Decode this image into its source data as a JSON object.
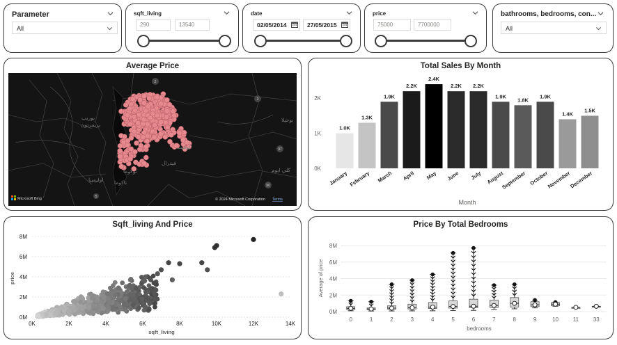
{
  "slicers": {
    "parameter": {
      "title": "Parameter",
      "value": "All"
    },
    "sqft_living": {
      "title": "sqft_living",
      "min": "290",
      "max": "13540"
    },
    "date": {
      "title": "date",
      "start": "02/05/2014",
      "end": "27/05/2015"
    },
    "price": {
      "title": "price",
      "min": "75000",
      "max": "7700000"
    },
    "rooms": {
      "title": "bathrooms, bedrooms, con...",
      "value": "All"
    }
  },
  "map": {
    "title": "Average Price",
    "attribution_left": "Microsoft Bing",
    "attribution_right": "© 2024 Microsoft Corporation",
    "terms": "Terms",
    "labels": [
      "بوريب",
      "بريمرتون",
      "توكوما",
      "كوفنت",
      "فيدرال",
      "كلي ايوم",
      "اوليمبيا",
      "بوحيلا",
      "تاكوما"
    ],
    "road_shields": [
      "2",
      "2",
      "97",
      "90",
      "5"
    ],
    "colors": {
      "background": "#141414",
      "bubble": "#e68a8f",
      "bubble_stroke": "#b55a62"
    }
  },
  "sales_by_month": {
    "title": "Total Sales By Month",
    "x_axis_title": "Month",
    "y_ticks": [
      "0K",
      "1K",
      "2K"
    ]
  },
  "scatter": {
    "title": "Sqft_living And Price",
    "x_axis_title": "sqft_living",
    "y_axis_title": "price",
    "x_ticks": [
      "0K",
      "2K",
      "4K",
      "6K",
      "8K",
      "10K",
      "12K",
      "14K"
    ],
    "y_ticks": [
      "0M",
      "2M",
      "4M",
      "6M",
      "8M"
    ]
  },
  "boxplot": {
    "title": "Price By Total Bedrooms",
    "x_axis_title": "bedrooms",
    "y_axis_title": "Average of price",
    "y_ticks": [
      "0M",
      "2M",
      "4M",
      "6M",
      "8M"
    ]
  },
  "chart_data": [
    {
      "type": "bar",
      "title": "Total Sales By Month",
      "xlabel": "Month",
      "ylabel": "",
      "ylim": [
        0,
        2600
      ],
      "categories": [
        "January",
        "February",
        "March",
        "April",
        "May",
        "June",
        "July",
        "August",
        "September",
        "October",
        "November",
        "December"
      ],
      "values": [
        1000,
        1300,
        1900,
        2200,
        2400,
        2200,
        2200,
        1900,
        1800,
        1900,
        1400,
        1500
      ],
      "data_labels": [
        "1.0K",
        "1.3K",
        "1.9K",
        "2.2K",
        "2.4K",
        "2.2K",
        "2.2K",
        "1.9K",
        "1.8K",
        "1.9K",
        "1.4K",
        "1.5K"
      ],
      "colors": [
        "#e6e6e6",
        "#c4c4c4",
        "#4a4a4a",
        "#1b1b1b",
        "#000000",
        "#2b2b2b",
        "#2b2b2b",
        "#4a4a4a",
        "#5a5a5a",
        "#4a4a4a",
        "#9a9a9a",
        "#8e8e8e"
      ]
    },
    {
      "type": "scatter",
      "title": "Sqft_living And Price",
      "xlabel": "sqft_living",
      "ylabel": "price",
      "xlim": [
        0,
        14000
      ],
      "ylim": [
        0,
        8000000
      ],
      "outliers": [
        {
          "x": 12000,
          "y": 7700000
        },
        {
          "x": 10000,
          "y": 7100000
        },
        {
          "x": 9900,
          "y": 6900000
        },
        {
          "x": 9200,
          "y": 5400000
        },
        {
          "x": 9500,
          "y": 4700000
        },
        {
          "x": 8000,
          "y": 5300000
        },
        {
          "x": 7400,
          "y": 5400000
        },
        {
          "x": 7000,
          "y": 4700000
        },
        {
          "x": 13500,
          "y": 2300000
        },
        {
          "x": 6800,
          "y": 4300000
        },
        {
          "x": 7600,
          "y": 3700000
        },
        {
          "x": 6100,
          "y": 3600000
        }
      ]
    },
    {
      "type": "box",
      "title": "Price By Total Bedrooms",
      "xlabel": "bedrooms",
      "ylabel": "Average of price",
      "ylim": [
        0,
        8000000
      ],
      "categories": [
        "0",
        "1",
        "2",
        "3",
        "4",
        "5",
        "6",
        "7",
        "8",
        "9",
        "10",
        "11",
        "33"
      ],
      "boxes": [
        {
          "min": 100000,
          "q1": 250000,
          "median": 400000,
          "q3": 600000,
          "max": 1300000
        },
        {
          "min": 75000,
          "q1": 230000,
          "median": 320000,
          "q3": 450000,
          "max": 1200000
        },
        {
          "min": 80000,
          "q1": 300000,
          "median": 420000,
          "q3": 700000,
          "max": 3300000
        },
        {
          "min": 90000,
          "q1": 320000,
          "median": 470000,
          "q3": 900000,
          "max": 3800000
        },
        {
          "min": 100000,
          "q1": 380000,
          "median": 550000,
          "q3": 1100000,
          "max": 4500000
        },
        {
          "min": 130000,
          "q1": 420000,
          "median": 620000,
          "q3": 1300000,
          "max": 7100000
        },
        {
          "min": 150000,
          "q1": 450000,
          "median": 650000,
          "q3": 1500000,
          "max": 7700000
        },
        {
          "min": 280000,
          "q1": 500000,
          "median": 750000,
          "q3": 1400000,
          "max": 3200000
        },
        {
          "min": 340000,
          "q1": 550000,
          "median": 1000000,
          "q3": 1700000,
          "max": 3300000
        },
        {
          "min": 450000,
          "q1": 600000,
          "median": 820000,
          "q3": 1200000,
          "max": 1400000
        },
        {
          "min": 650000,
          "q1": 700000,
          "median": 900000,
          "q3": 1100000,
          "max": 1150000
        },
        {
          "min": 520000,
          "q1": 520000,
          "median": 520000,
          "q3": 520000,
          "max": 520000
        },
        {
          "min": 640000,
          "q1": 640000,
          "median": 640000,
          "q3": 640000,
          "max": 640000
        }
      ]
    }
  ]
}
